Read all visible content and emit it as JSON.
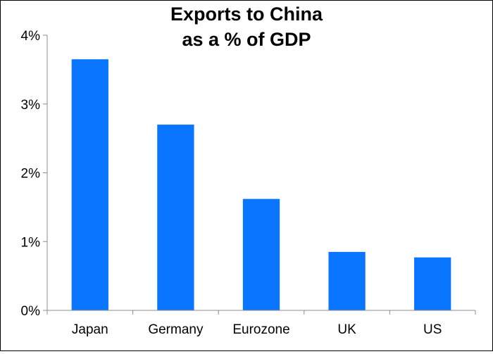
{
  "chart_data": {
    "type": "bar",
    "title_lines": [
      "Exports to China",
      "as a % of GDP"
    ],
    "categories": [
      "Japan",
      "Germany",
      "Eurozone",
      "UK",
      "US"
    ],
    "values": [
      3.65,
      2.7,
      1.62,
      0.85,
      0.77
    ],
    "ylim": [
      0,
      4
    ],
    "y_ticks": [
      0,
      1,
      2,
      3,
      4
    ],
    "y_tick_labels": [
      "0%",
      "1%",
      "2%",
      "3%",
      "4%"
    ],
    "grid": false,
    "legend": "none",
    "bar_color": "#0A76FF",
    "xlabel": "",
    "ylabel": ""
  }
}
